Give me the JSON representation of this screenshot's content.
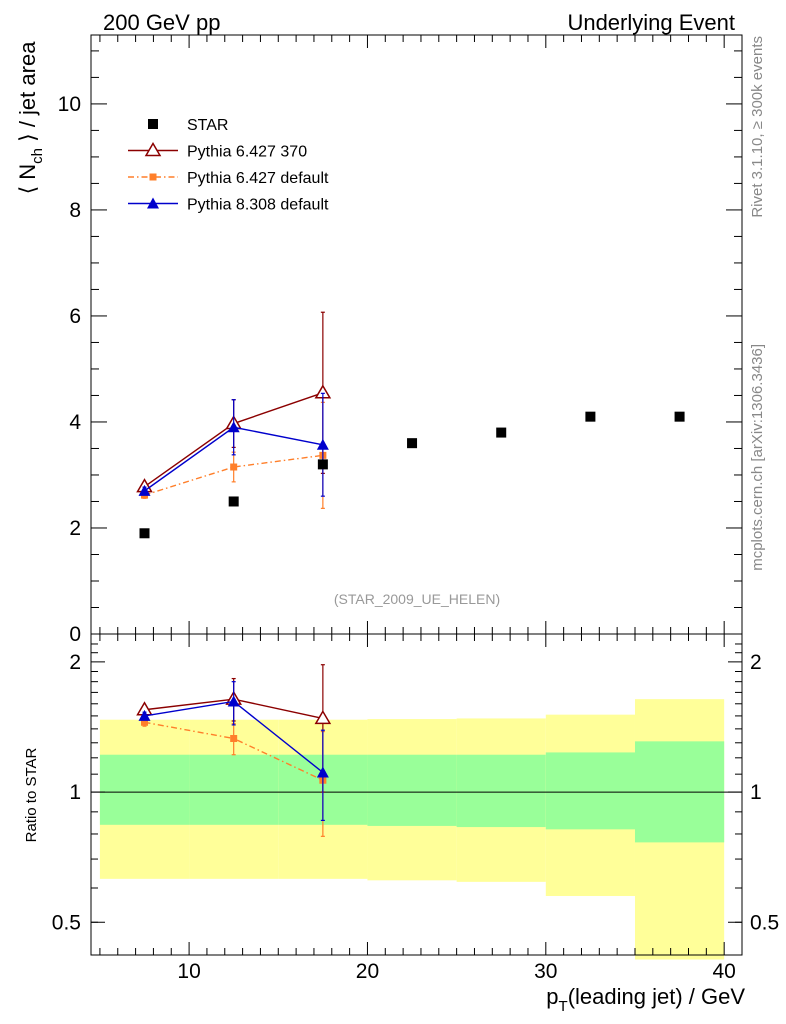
{
  "header": {
    "left": "200 GeV pp",
    "right": "Underlying Event"
  },
  "side": {
    "rivet": "Rivet 3.1.10, ≥ 300k events",
    "mcplots": "mcplots.cern.ch [arXiv:1306.3436]"
  },
  "analysis_label": "(STAR_2009_UE_HELEN)",
  "colors": {
    "star": "#000000",
    "p6_370": "#8b0000",
    "p6_default": "#ff7f2a",
    "p8": "#0000cc",
    "band_outer": "#ffff99",
    "band_inner": "#99ff99"
  },
  "chart_data": [
    {
      "type": "scatter",
      "xlabel": "p_T(leading jet) / GeV",
      "ylabel": "⟨ N_ch ⟩ / jet area",
      "xlim": [
        4.5,
        41
      ],
      "ylim": [
        0,
        11.3
      ],
      "yticks": [
        0,
        2,
        4,
        6,
        8,
        10
      ],
      "legend_position": "top-left",
      "series": [
        {
          "name": "STAR",
          "marker": "square",
          "x": [
            7.5,
            12.5,
            17.5,
            22.5,
            27.5,
            32.5,
            37.5
          ],
          "y": [
            1.9,
            2.5,
            3.2,
            3.6,
            3.8,
            4.1,
            4.1
          ]
        },
        {
          "name": "Pythia 6.427 370",
          "marker": "open-triangle",
          "line": "solid",
          "x": [
            7.5,
            12.5,
            17.5
          ],
          "y": [
            2.78,
            3.97,
            4.55
          ],
          "yerr": [
            0.07,
            0.45,
            1.52
          ]
        },
        {
          "name": "Pythia 6.427 default",
          "marker": "small-square",
          "line": "dashdot",
          "x": [
            7.5,
            12.5,
            17.5
          ],
          "y": [
            2.62,
            3.15,
            3.37
          ],
          "yerr": [
            0.06,
            0.28,
            1.0
          ]
        },
        {
          "name": "Pythia 8.308 default",
          "marker": "filled-triangle",
          "line": "solid",
          "x": [
            7.5,
            12.5,
            17.5
          ],
          "y": [
            2.7,
            3.9,
            3.57
          ],
          "yerr": [
            0.07,
            0.52,
            0.97
          ]
        }
      ]
    },
    {
      "type": "line",
      "xlabel": "p_T(leading jet) / GeV",
      "ylabel": "Ratio to STAR",
      "xlim": [
        4.5,
        41
      ],
      "ylim": [
        0.42,
        2.32
      ],
      "yticks": [
        0.5,
        1,
        2
      ],
      "xticks": [
        10,
        20,
        30,
        40
      ],
      "log_y": true,
      "bands": {
        "bin_edges": [
          5,
          10,
          15,
          20,
          25,
          30,
          35,
          40
        ],
        "outer_low": [
          0.63,
          0.63,
          0.63,
          0.625,
          0.62,
          0.575,
          0.41
        ],
        "outer_high": [
          1.47,
          1.47,
          1.47,
          1.475,
          1.48,
          1.51,
          1.64
        ],
        "inner_low": [
          0.84,
          0.84,
          0.84,
          0.835,
          0.83,
          0.82,
          0.765
        ],
        "inner_high": [
          1.22,
          1.22,
          1.22,
          1.22,
          1.22,
          1.235,
          1.31
        ]
      },
      "series": [
        {
          "name": "Pythia 6.427 370",
          "x": [
            7.5,
            12.5,
            17.5
          ],
          "y": [
            1.55,
            1.64,
            1.48
          ],
          "err_low": [
            1.52,
            1.46,
            1.0
          ],
          "err_high": [
            1.58,
            1.83,
            1.97
          ]
        },
        {
          "name": "Pythia 6.427 default",
          "x": [
            7.5,
            12.5,
            17.5
          ],
          "y": [
            1.45,
            1.33,
            1.065
          ],
          "err_low": [
            1.42,
            1.22,
            0.79
          ],
          "err_high": [
            1.48,
            1.44,
            1.38
          ]
        },
        {
          "name": "Pythia 8.308 default",
          "x": [
            7.5,
            12.5,
            17.5
          ],
          "y": [
            1.5,
            1.62,
            1.11
          ],
          "err_low": [
            1.47,
            1.43,
            0.86
          ],
          "err_high": [
            1.53,
            1.8,
            1.39
          ]
        }
      ]
    }
  ]
}
